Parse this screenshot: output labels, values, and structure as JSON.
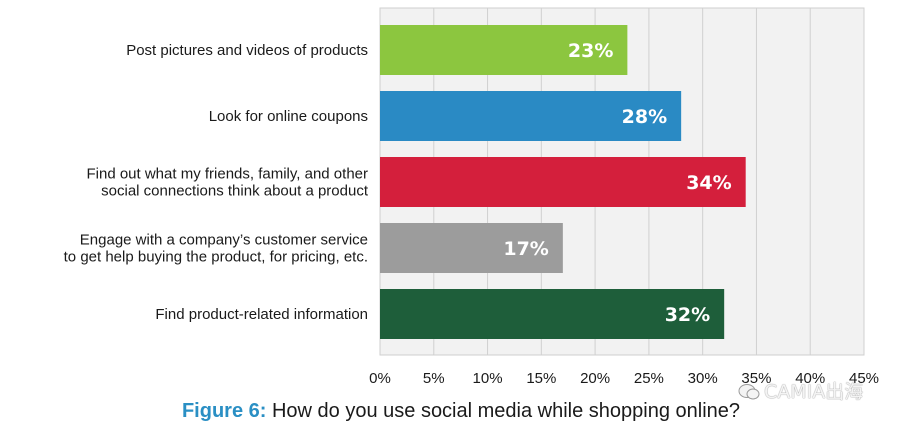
{
  "chart_data": {
    "type": "bar",
    "orientation": "horizontal",
    "categories": [
      [
        "Post pictures and videos of products"
      ],
      [
        "Look for online coupons"
      ],
      [
        "Find out what my friends, family, and other",
        "social connections think about a product"
      ],
      [
        "Engage with a company’s customer service",
        "to get help buying the product, for pricing, etc."
      ],
      [
        "Find product-related information"
      ]
    ],
    "values": [
      23,
      28,
      34,
      17,
      32
    ],
    "value_labels": [
      "23%",
      "28%",
      "34%",
      "17%",
      "32%"
    ],
    "colors": [
      "#8cc63f",
      "#2a8ac4",
      "#d41f3c",
      "#9c9c9c",
      "#1e5e3a"
    ],
    "xlim": [
      0,
      45
    ],
    "xticks": [
      0,
      5,
      10,
      15,
      20,
      25,
      30,
      35,
      40,
      45
    ],
    "xtick_labels": [
      "0%",
      "5%",
      "10%",
      "15%",
      "20%",
      "25%",
      "30%",
      "35%",
      "40%",
      "45%"
    ],
    "grid": true,
    "title": ""
  },
  "caption": {
    "figure_label": "Figure 6:",
    "text": " How do you use social media while shopping online?"
  },
  "watermark": {
    "text": "CAMIA出海",
    "icon": "wechat-icon"
  }
}
